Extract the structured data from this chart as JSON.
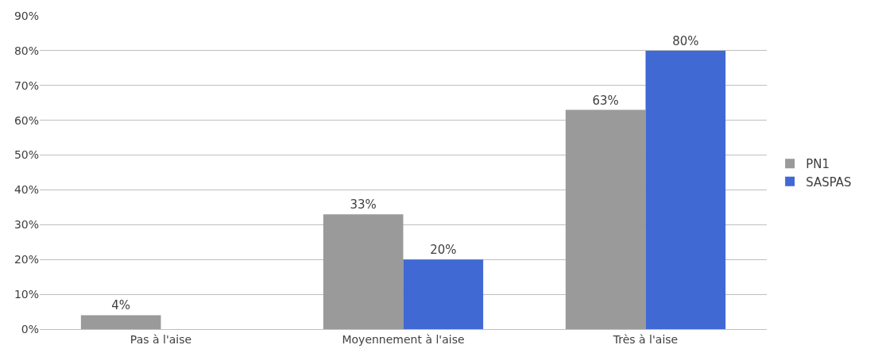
{
  "chart_data": {
    "type": "bar",
    "categories": [
      "Pas à l'aise",
      "Moyennement à l'aise",
      "Très à l'aise"
    ],
    "series": [
      {
        "name": "PN1",
        "color": "#9a9a9a",
        "values": [
          4,
          33,
          63
        ],
        "value_labels": [
          "4%",
          "33%",
          "63%"
        ]
      },
      {
        "name": "SASPAS",
        "color": "#4169d4",
        "values": [
          0,
          20,
          80
        ],
        "value_labels": [
          null,
          "20%",
          "80%"
        ]
      }
    ],
    "ylim": [
      0,
      90
    ],
    "yticks": [
      {
        "value": 0,
        "label": "0%"
      },
      {
        "value": 10,
        "label": "10%"
      },
      {
        "value": 20,
        "label": "20%"
      },
      {
        "value": 30,
        "label": "30%"
      },
      {
        "value": 40,
        "label": "40%"
      },
      {
        "value": 50,
        "label": "50%"
      },
      {
        "value": 60,
        "label": "60%"
      },
      {
        "value": 70,
        "label": "70%"
      },
      {
        "value": 80,
        "label": "80%"
      },
      {
        "value": 90,
        "label": "90%"
      }
    ],
    "grid": "y",
    "legend": "right"
  }
}
